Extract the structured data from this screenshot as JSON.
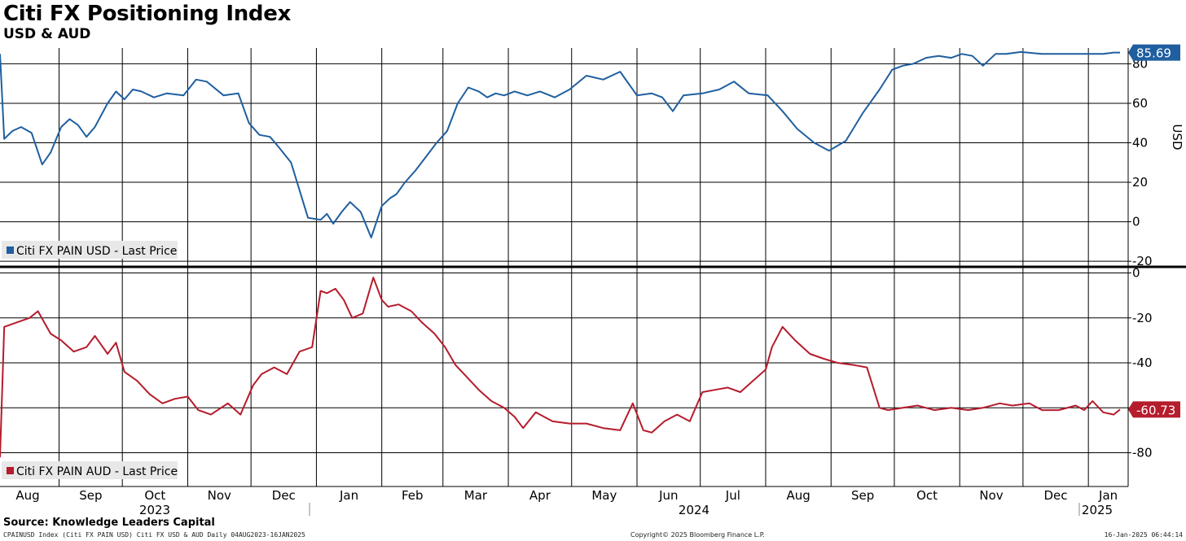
{
  "header": {
    "title": "Citi FX Positioning Index",
    "subtitle": "USD & AUD"
  },
  "footer": {
    "source": "Source: Knowledge Leaders Capital",
    "left_note": "CPAINUSD Index (Citi FX PAIN USD) Citi FX USD & AUD  Daily 04AUG2023-16JAN2025",
    "copyright": "Copyright© 2025 Bloomberg Finance L.P.",
    "timestamp": "16-Jan-2025 06:44:14"
  },
  "chart_data": [
    {
      "type": "line",
      "axis_label": "USD",
      "ylim": [
        -22,
        88
      ],
      "yticks": [
        80,
        60,
        40,
        20,
        0,
        -20
      ],
      "grid": true,
      "legend_position": "bottom-left",
      "last_value_label": "85.69",
      "color": "#1f5f9f",
      "series": [
        {
          "name": "Citi FX PAIN USD - Last Price",
          "x": [
            "2023-08-04",
            "2023-08-06",
            "2023-08-10",
            "2023-08-14",
            "2023-08-19",
            "2023-08-24",
            "2023-08-28",
            "2023-09-02",
            "2023-09-06",
            "2023-09-10",
            "2023-09-14",
            "2023-09-18",
            "2023-09-24",
            "2023-09-28",
            "2023-10-02",
            "2023-10-06",
            "2023-10-10",
            "2023-10-16",
            "2023-10-22",
            "2023-10-30",
            "2023-11-05",
            "2023-11-10",
            "2023-11-18",
            "2023-11-25",
            "2023-11-30",
            "2023-12-05",
            "2023-12-10",
            "2023-12-14",
            "2023-12-20",
            "2023-12-28",
            "2024-01-03",
            "2024-01-06",
            "2024-01-09",
            "2024-01-13",
            "2024-01-17",
            "2024-01-22",
            "2024-01-27",
            "2024-02-01",
            "2024-02-05",
            "2024-02-08",
            "2024-02-12",
            "2024-02-17",
            "2024-02-22",
            "2024-02-27",
            "2024-03-03",
            "2024-03-08",
            "2024-03-13",
            "2024-03-18",
            "2024-03-22",
            "2024-03-26",
            "2024-03-30",
            "2024-04-04",
            "2024-04-10",
            "2024-04-16",
            "2024-04-23",
            "2024-04-30",
            "2024-05-08",
            "2024-05-16",
            "2024-05-24",
            "2024-06-01",
            "2024-06-08",
            "2024-06-13",
            "2024-06-18",
            "2024-06-23",
            "2024-07-02",
            "2024-07-10",
            "2024-07-17",
            "2024-07-24",
            "2024-08-02",
            "2024-08-09",
            "2024-08-16",
            "2024-08-24",
            "2024-08-31",
            "2024-09-08",
            "2024-09-16",
            "2024-09-24",
            "2024-09-30",
            "2024-10-05",
            "2024-10-10",
            "2024-10-16",
            "2024-10-22",
            "2024-10-28",
            "2024-11-02",
            "2024-11-07",
            "2024-11-12",
            "2024-11-18",
            "2024-11-23",
            "2024-11-30",
            "2024-12-10",
            "2024-12-20",
            "2024-12-26",
            "2024-12-30",
            "2025-01-03",
            "2025-01-08",
            "2025-01-13",
            "2025-01-16"
          ],
          "values": [
            85,
            42,
            46,
            48,
            45,
            29,
            35,
            48,
            52,
            49,
            43,
            48,
            60,
            66,
            62,
            67,
            66,
            63,
            65,
            64,
            72,
            71,
            64,
            65,
            50,
            44,
            43,
            38,
            30,
            2,
            1,
            4,
            -1,
            5,
            10,
            5,
            -8,
            8,
            12,
            14,
            20,
            26,
            33,
            40,
            46,
            60,
            68,
            66,
            63,
            65,
            64,
            66,
            64,
            66,
            63,
            67,
            74,
            72,
            76,
            64,
            65,
            63,
            56,
            64,
            65,
            67,
            71,
            65,
            64,
            56,
            47,
            40,
            36,
            41,
            55,
            67,
            77,
            79,
            80,
            83,
            84,
            83,
            85,
            84,
            79,
            85,
            85,
            86,
            85,
            85,
            85,
            85,
            85,
            85,
            85.69,
            85.69
          ]
        }
      ]
    },
    {
      "type": "line",
      "axis_label": "",
      "ylim": [
        -95,
        2
      ],
      "yticks": [
        0,
        -20,
        -40,
        -60,
        -80
      ],
      "grid": true,
      "legend_position": "bottom-left",
      "last_value_label": "-60.73",
      "color": "#b51c2c",
      "series": [
        {
          "name": "Citi FX PAIN AUD - Last Price",
          "x": [
            "2023-08-04",
            "2023-08-06",
            "2023-08-12",
            "2023-08-18",
            "2023-08-22",
            "2023-08-28",
            "2023-09-02",
            "2023-09-08",
            "2023-09-14",
            "2023-09-18",
            "2023-09-24",
            "2023-09-28",
            "2023-10-02",
            "2023-10-08",
            "2023-10-14",
            "2023-10-20",
            "2023-10-26",
            "2023-11-01",
            "2023-11-06",
            "2023-11-12",
            "2023-11-20",
            "2023-11-26",
            "2023-12-02",
            "2023-12-06",
            "2023-12-12",
            "2023-12-18",
            "2023-12-24",
            "2023-12-30",
            "2024-01-03",
            "2024-01-06",
            "2024-01-10",
            "2024-01-14",
            "2024-01-18",
            "2024-01-23",
            "2024-01-28",
            "2024-02-01",
            "2024-02-04",
            "2024-02-09",
            "2024-02-15",
            "2024-02-20",
            "2024-02-26",
            "2024-03-02",
            "2024-03-07",
            "2024-03-12",
            "2024-03-18",
            "2024-03-24",
            "2024-03-30",
            "2024-04-04",
            "2024-04-08",
            "2024-04-14",
            "2024-04-22",
            "2024-04-30",
            "2024-05-08",
            "2024-05-16",
            "2024-05-24",
            "2024-05-30",
            "2024-06-04",
            "2024-06-08",
            "2024-06-14",
            "2024-06-20",
            "2024-06-26",
            "2024-07-02",
            "2024-07-08",
            "2024-07-14",
            "2024-07-20",
            "2024-07-26",
            "2024-08-01",
            "2024-08-04",
            "2024-08-09",
            "2024-08-15",
            "2024-08-22",
            "2024-08-28",
            "2024-09-04",
            "2024-09-12",
            "2024-09-18",
            "2024-09-24",
            "2024-09-28",
            "2024-10-05",
            "2024-10-12",
            "2024-10-20",
            "2024-10-28",
            "2024-11-05",
            "2024-11-12",
            "2024-11-20",
            "2024-11-26",
            "2024-12-04",
            "2024-12-10",
            "2024-12-18",
            "2024-12-26",
            "2024-12-30",
            "2025-01-03",
            "2025-01-08",
            "2025-01-13",
            "2025-01-16"
          ],
          "values": [
            -82,
            -24,
            -22,
            -20,
            -17,
            -27,
            -30,
            -35,
            -33,
            -28,
            -36,
            -31,
            -44,
            -48,
            -54,
            -58,
            -56,
            -55,
            -61,
            -63,
            -58,
            -63,
            -50,
            -45,
            -42,
            -45,
            -35,
            -33,
            -8,
            -9,
            -7,
            -12,
            -20,
            -18,
            -2,
            -12,
            -15,
            -14,
            -17,
            -22,
            -27,
            -33,
            -41,
            -46,
            -52,
            -57,
            -60,
            -64,
            -69,
            -62,
            -66,
            -67,
            -67,
            -69,
            -70,
            -58,
            -70,
            -71,
            -66,
            -63,
            -66,
            -53,
            -52,
            -51,
            -53,
            -48,
            -43,
            -33,
            -24,
            -30,
            -36,
            -38,
            -40,
            -41,
            -42,
            -60,
            -61,
            -60,
            -59,
            -61,
            -60,
            -61,
            -60,
            -58,
            -59,
            -58,
            -61,
            -61,
            -59,
            -61,
            -57,
            -62,
            -63,
            -60.73
          ]
        }
      ]
    }
  ],
  "x_axis": {
    "month_labels": [
      "Aug",
      "Sep",
      "Oct",
      "Nov",
      "Dec",
      "Jan",
      "Feb",
      "Mar",
      "Apr",
      "May",
      "Jun",
      "Jul",
      "Aug",
      "Sep",
      "Oct",
      "Nov",
      "Dec",
      "Jan"
    ],
    "month_dates": [
      "2023-08-01",
      "2023-09-01",
      "2023-10-01",
      "2023-11-01",
      "2023-12-01",
      "2024-01-01",
      "2024-02-01",
      "2024-03-01",
      "2024-04-01",
      "2024-05-01",
      "2024-06-01",
      "2024-07-01",
      "2024-08-01",
      "2024-09-01",
      "2024-10-01",
      "2024-11-01",
      "2024-12-01",
      "2025-01-01"
    ],
    "year_labels": [
      "2023",
      "2024",
      "2025"
    ],
    "start": "2023-08-04",
    "end": "2025-01-16"
  }
}
